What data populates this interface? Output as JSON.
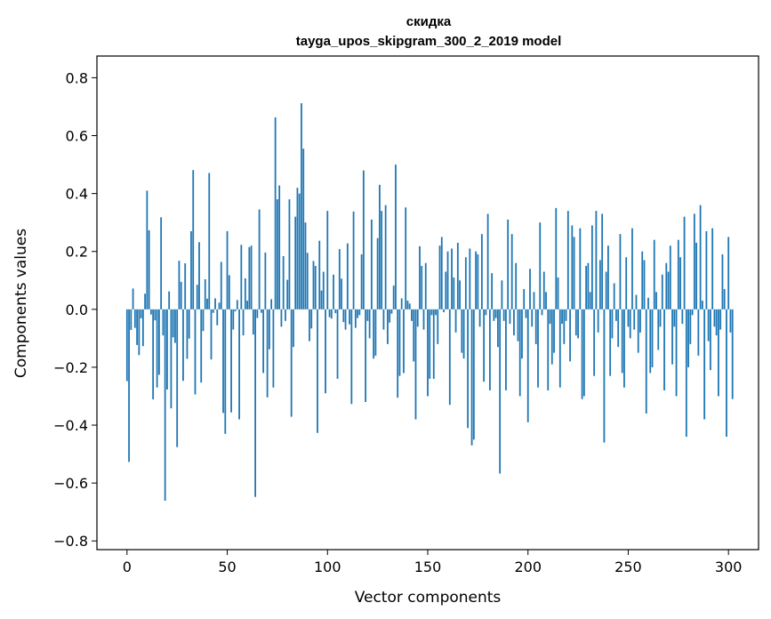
{
  "chart_data": {
    "type": "bar",
    "title": "скидка",
    "subtitle": "tayga_upos_skipgram_300_2_2019 model",
    "xlabel": "Vector components",
    "ylabel": "Components values",
    "xlim": [
      -15,
      315
    ],
    "ylim": [
      -0.83,
      0.875
    ],
    "xticks": [
      0,
      50,
      100,
      150,
      200,
      250,
      300
    ],
    "yticks": [
      -0.8,
      -0.6,
      -0.4,
      -0.2,
      0.0,
      0.2,
      0.4,
      0.6,
      0.8
    ],
    "ytick_labels": [
      "−0.8",
      "−0.6",
      "−0.4",
      "−0.2",
      "0.0",
      "0.2",
      "0.4",
      "0.6",
      "0.8"
    ],
    "bar_color": "#1f77b4",
    "grid": false,
    "legend": "none",
    "values": [
      -0.248,
      -0.527,
      -0.071,
      0.072,
      -0.064,
      -0.123,
      -0.158,
      -0.031,
      -0.127,
      0.054,
      0.41,
      0.273,
      -0.018,
      -0.311,
      -0.038,
      -0.27,
      -0.226,
      0.318,
      -0.09,
      -0.661,
      -0.277,
      0.062,
      -0.342,
      -0.097,
      -0.116,
      -0.476,
      0.168,
      0.095,
      -0.247,
      0.159,
      -0.171,
      -0.101,
      0.27,
      0.481,
      -0.294,
      0.085,
      0.232,
      -0.253,
      -0.075,
      0.104,
      0.037,
      0.471,
      -0.173,
      -0.012,
      0.038,
      -0.055,
      0.023,
      0.164,
      -0.358,
      -0.43,
      0.27,
      0.118,
      -0.356,
      -0.07,
      -0.007,
      0.032,
      -0.38,
      0.223,
      -0.09,
      0.107,
      0.03,
      0.215,
      0.22,
      -0.087,
      -0.648,
      -0.03,
      0.345,
      -0.012,
      -0.22,
      0.196,
      -0.304,
      -0.138,
      0.035,
      -0.27,
      0.663,
      0.38,
      0.428,
      -0.06,
      0.184,
      -0.04,
      0.102,
      0.38,
      -0.371,
      -0.13,
      0.32,
      0.42,
      0.4,
      0.712,
      0.555,
      0.3,
      0.195,
      -0.11,
      -0.066,
      0.167,
      0.15,
      -0.427,
      0.237,
      0.065,
      0.13,
      -0.29,
      0.34,
      -0.027,
      -0.032,
      0.12,
      -0.013,
      -0.24,
      0.208,
      0.106,
      -0.044,
      -0.07,
      0.228,
      -0.052,
      -0.327,
      0.338,
      -0.064,
      -0.03,
      -0.02,
      0.19,
      0.48,
      -0.32,
      -0.04,
      -0.1,
      0.31,
      -0.17,
      -0.16,
      0.246,
      0.43,
      0.34,
      -0.07,
      0.36,
      -0.12,
      -0.046,
      -0.015,
      0.082,
      0.5,
      -0.305,
      -0.23,
      0.038,
      -0.22,
      0.352,
      0.03,
      0.02,
      -0.04,
      -0.18,
      -0.38,
      -0.06,
      0.218,
      0.15,
      -0.07,
      0.16,
      -0.3,
      -0.24,
      -0.02,
      -0.24,
      -0.02,
      -0.12,
      0.22,
      0.25,
      -0.01,
      0.13,
      0.2,
      -0.33,
      0.21,
      0.11,
      -0.08,
      0.23,
      0.1,
      -0.15,
      -0.17,
      0.18,
      -0.41,
      0.21,
      -0.47,
      -0.45,
      0.2,
      0.19,
      -0.06,
      0.26,
      -0.25,
      -0.02,
      0.33,
      -0.28,
      0.125,
      -0.04,
      -0.03,
      -0.13,
      -0.567,
      0.1,
      -0.04,
      -0.28,
      0.31,
      -0.05,
      0.26,
      -0.09,
      0.16,
      -0.11,
      -0.3,
      -0.17,
      0.07,
      -0.03,
      -0.39,
      0.14,
      -0.06,
      0.06,
      -0.12,
      -0.27,
      0.3,
      -0.02,
      0.13,
      0.06,
      -0.28,
      -0.05,
      -0.19,
      -0.15,
      0.35,
      0.11,
      -0.27,
      -0.05,
      -0.12,
      -0.04,
      0.34,
      -0.18,
      0.29,
      0.25,
      -0.09,
      -0.1,
      0.28,
      -0.31,
      -0.3,
      0.15,
      0.16,
      0.06,
      0.29,
      -0.23,
      0.34,
      -0.08,
      0.17,
      0.33,
      -0.46,
      0.13,
      0.22,
      -0.23,
      -0.1,
      0.09,
      -0.04,
      -0.13,
      0.26,
      -0.22,
      -0.27,
      0.18,
      -0.06,
      -0.1,
      0.28,
      -0.07,
      0.05,
      -0.15,
      -0.08,
      0.2,
      0.17,
      -0.36,
      0.04,
      -0.22,
      -0.2,
      0.24,
      0.06,
      -0.14,
      -0.06,
      0.12,
      -0.28,
      0.16,
      0.13,
      0.22,
      -0.19,
      -0.06,
      -0.3,
      0.24,
      0.18,
      -0.05,
      0.32,
      -0.44,
      -0.2,
      -0.12,
      -0.02,
      0.33,
      0.23,
      -0.16,
      0.36,
      0.03,
      -0.38,
      0.27,
      -0.11,
      -0.21,
      0.28,
      -0.06,
      -0.09,
      -0.3,
      -0.07,
      0.19,
      0.07,
      -0.44,
      0.25,
      -0.08,
      -0.31
    ]
  }
}
